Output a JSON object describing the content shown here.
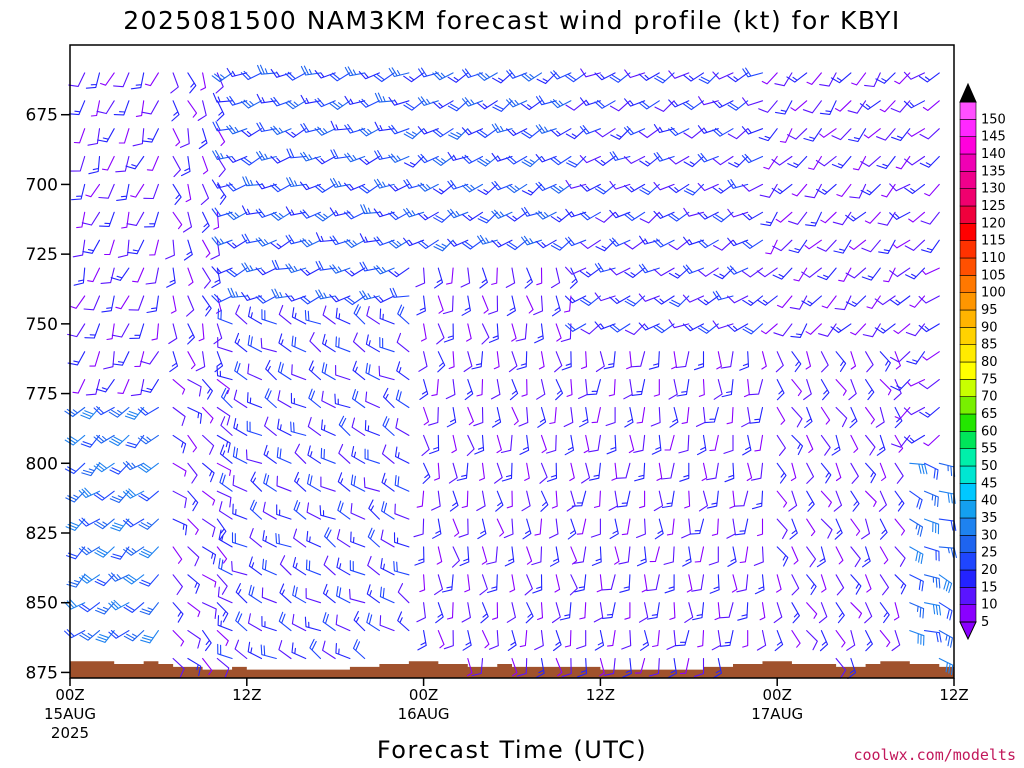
{
  "chart_data": {
    "type": "wind_barb_profile",
    "title": "2025081500 NAM3KM forecast wind profile (kt) for KBYI",
    "xlabel": "Forecast Time (UTC)",
    "x_ticks": [
      {
        "hour": 0,
        "label": "00Z",
        "date": "15AUG",
        "year": "2025"
      },
      {
        "hour": 12,
        "label": "12Z",
        "date": "",
        "year": ""
      },
      {
        "hour": 24,
        "label": "00Z",
        "date": "16AUG",
        "year": ""
      },
      {
        "hour": 36,
        "label": "12Z",
        "date": "",
        "year": ""
      },
      {
        "hour": 48,
        "label": "00Z",
        "date": "17AUG",
        "year": ""
      },
      {
        "hour": 60,
        "label": "12Z",
        "date": "",
        "year": ""
      }
    ],
    "xlim": [
      0,
      60
    ],
    "y_ticks": [
      675,
      700,
      725,
      750,
      775,
      800,
      825,
      850,
      875
    ],
    "ylim": [
      650,
      877
    ],
    "y_inverted": true,
    "levels_hpa": [
      660,
      670,
      680,
      690,
      700,
      710,
      720,
      730,
      740,
      750,
      760,
      770,
      780,
      790,
      800,
      810,
      820,
      830,
      840,
      850,
      860,
      870
    ],
    "colorbar": {
      "labels": [
        "5",
        "10",
        "15",
        "20",
        "25",
        "30",
        "35",
        "40",
        "45",
        "50",
        "55",
        "60",
        "65",
        "70",
        "75",
        "80",
        "85",
        "90",
        "95",
        "100",
        "105",
        "110",
        "115",
        "120",
        "125",
        "130",
        "135",
        "140",
        "145",
        "150"
      ],
      "colors": [
        "#8a00ff",
        "#5a14ff",
        "#2323ff",
        "#1f46ff",
        "#1e64f0",
        "#1e82f0",
        "#14a0f0",
        "#00c8ff",
        "#00e6d2",
        "#00f0aa",
        "#00e65a",
        "#23e600",
        "#78f000",
        "#c8ff00",
        "#ffff00",
        "#ffeb00",
        "#ffd200",
        "#ffb400",
        "#ff9600",
        "#ff7800",
        "#ff5000",
        "#ff3200",
        "#ff0000",
        "#f0003c",
        "#f0006e",
        "#f0008c",
        "#f000b4",
        "#ff00dc",
        "#ff28ff",
        "#ff50ff"
      ]
    },
    "terrain": {
      "color": "#a0522d",
      "surface_pressure_by_hour": [
        {
          "hour": 0,
          "p": 871
        },
        {
          "hour": 1,
          "p": 871
        },
        {
          "hour": 2,
          "p": 871
        },
        {
          "hour": 3,
          "p": 872
        },
        {
          "hour": 4,
          "p": 872
        },
        {
          "hour": 5,
          "p": 871
        },
        {
          "hour": 6,
          "p": 872
        },
        {
          "hour": 7,
          "p": 873
        },
        {
          "hour": 8,
          "p": 873
        },
        {
          "hour": 9,
          "p": 874
        },
        {
          "hour": 10,
          "p": 874
        },
        {
          "hour": 11,
          "p": 873
        },
        {
          "hour": 12,
          "p": 874
        },
        {
          "hour": 13,
          "p": 874
        },
        {
          "hour": 14,
          "p": 874
        },
        {
          "hour": 15,
          "p": 874
        },
        {
          "hour": 16,
          "p": 874
        },
        {
          "hour": 17,
          "p": 874
        },
        {
          "hour": 18,
          "p": 874
        },
        {
          "hour": 19,
          "p": 873
        },
        {
          "hour": 20,
          "p": 873
        },
        {
          "hour": 21,
          "p": 872
        },
        {
          "hour": 22,
          "p": 872
        },
        {
          "hour": 23,
          "p": 871
        },
        {
          "hour": 24,
          "p": 871
        },
        {
          "hour": 25,
          "p": 872
        },
        {
          "hour": 26,
          "p": 872
        },
        {
          "hour": 27,
          "p": 873
        },
        {
          "hour": 28,
          "p": 873
        },
        {
          "hour": 29,
          "p": 872
        },
        {
          "hour": 30,
          "p": 873
        },
        {
          "hour": 31,
          "p": 873
        },
        {
          "hour": 32,
          "p": 873
        },
        {
          "hour": 33,
          "p": 873
        },
        {
          "hour": 34,
          "p": 873
        },
        {
          "hour": 35,
          "p": 873
        },
        {
          "hour": 36,
          "p": 874
        },
        {
          "hour": 37,
          "p": 874
        },
        {
          "hour": 38,
          "p": 874
        },
        {
          "hour": 39,
          "p": 874
        },
        {
          "hour": 40,
          "p": 874
        },
        {
          "hour": 41,
          "p": 874
        },
        {
          "hour": 42,
          "p": 874
        },
        {
          "hour": 43,
          "p": 873
        },
        {
          "hour": 44,
          "p": 873
        },
        {
          "hour": 45,
          "p": 872
        },
        {
          "hour": 46,
          "p": 872
        },
        {
          "hour": 47,
          "p": 871
        },
        {
          "hour": 48,
          "p": 871
        },
        {
          "hour": 49,
          "p": 872
        },
        {
          "hour": 50,
          "p": 872
        },
        {
          "hour": 51,
          "p": 872
        },
        {
          "hour": 52,
          "p": 873
        },
        {
          "hour": 53,
          "p": 873
        },
        {
          "hour": 54,
          "p": 872
        },
        {
          "hour": 55,
          "p": 871
        },
        {
          "hour": 56,
          "p": 871
        },
        {
          "hour": 57,
          "p": 872
        },
        {
          "hour": 58,
          "p": 872
        },
        {
          "hour": 59,
          "p": 873
        },
        {
          "hour": 60,
          "p": 873
        }
      ]
    },
    "wind_regimes": [
      {
        "hours": [
          0,
          6
        ],
        "levels": [
          660,
          770
        ],
        "dir": 200,
        "spd": 10
      },
      {
        "hours": [
          0,
          6
        ],
        "levels": [
          780,
          870
        ],
        "dir": 230,
        "spd": 25
      },
      {
        "hours": [
          7,
          10
        ],
        "levels": [
          660,
          760
        ],
        "dir": 160,
        "spd": 10
      },
      {
        "hours": [
          7,
          10
        ],
        "levels": [
          770,
          870
        ],
        "dir": 130,
        "spd": 10
      },
      {
        "hours": [
          11,
          23
        ],
        "levels": [
          660,
          740
        ],
        "dir": 250,
        "spd": 20
      },
      {
        "hours": [
          11,
          23
        ],
        "levels": [
          750,
          870
        ],
        "dir": 300,
        "spd": 15
      },
      {
        "hours": [
          24,
          34
        ],
        "levels": [
          660,
          720
        ],
        "dir": 240,
        "spd": 20
      },
      {
        "hours": [
          24,
          34
        ],
        "levels": [
          730,
          870
        ],
        "dir": 170,
        "spd": 10
      },
      {
        "hours": [
          35,
          47
        ],
        "levels": [
          660,
          750
        ],
        "dir": 240,
        "spd": 15
      },
      {
        "hours": [
          35,
          47
        ],
        "levels": [
          760,
          870
        ],
        "dir": 180,
        "spd": 10
      },
      {
        "hours": [
          48,
          56
        ],
        "levels": [
          660,
          750
        ],
        "dir": 220,
        "spd": 10
      },
      {
        "hours": [
          48,
          56
        ],
        "levels": [
          760,
          870
        ],
        "dir": 150,
        "spd": 10
      },
      {
        "hours": [
          57,
          60
        ],
        "levels": [
          660,
          790
        ],
        "dir": 230,
        "spd": 10
      },
      {
        "hours": [
          57,
          60
        ],
        "levels": [
          800,
          870
        ],
        "dir": 110,
        "spd": 25
      }
    ]
  },
  "credit": "coolwx.com/modelts"
}
